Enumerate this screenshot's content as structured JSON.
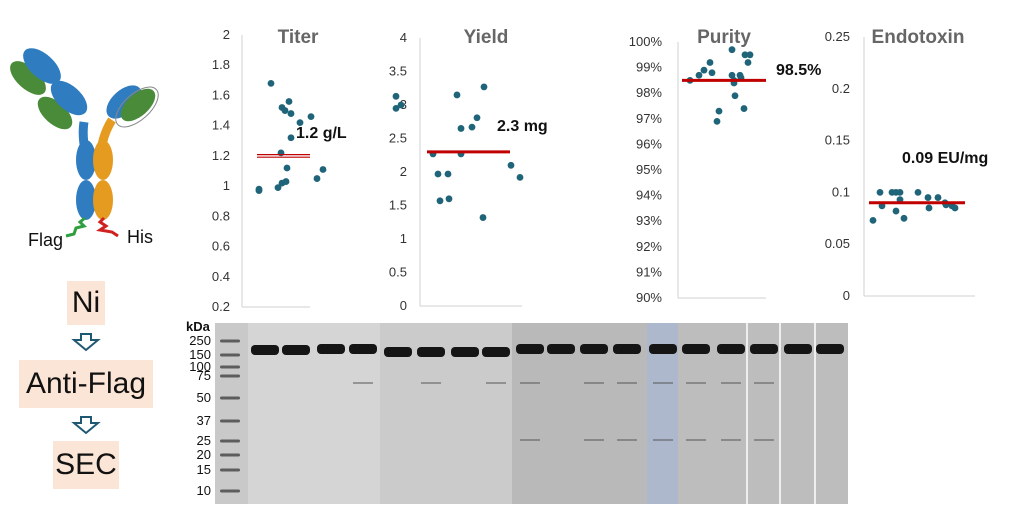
{
  "antibody": {
    "tag_left": "Flag",
    "tag_right": "His"
  },
  "workflow": {
    "steps": [
      "Ni",
      "Anti-Flag",
      "SEC"
    ]
  },
  "colors": {
    "point": "#1f6479",
    "mean_line": "#c00000",
    "heavy_chain": "#e59a20",
    "light_chain": "#4a8b3a",
    "fab": "#2f7dc0",
    "workflow_box": "#fbe5d6"
  },
  "chart_data": [
    {
      "type": "scatter",
      "title": "Titer",
      "ylim": [
        0.2,
        2
      ],
      "yticks": [
        "0.2",
        "0.4",
        "0.6",
        "0.8",
        "1",
        "1.2",
        "1.4",
        "1.6",
        "1.8",
        "2"
      ],
      "points": [
        1.68,
        1.52,
        1.5,
        1.56,
        1.48,
        1.42,
        1.46,
        1.32,
        1.22,
        1.12,
        1.02,
        0.98,
        0.99,
        0.97,
        1.03,
        1.05,
        1.11
      ],
      "mean": 1.2,
      "annotation": "1.2 g/L"
    },
    {
      "type": "scatter",
      "title": "Yield",
      "ylim": [
        0,
        4
      ],
      "yticks": [
        "0",
        "0.5",
        "1",
        "1.5",
        "2",
        "2.5",
        "3",
        "3.5",
        "4"
      ],
      "points": [
        3.13,
        2.95,
        3.0,
        2.27,
        1.97,
        1.57,
        1.97,
        1.6,
        2.27,
        3.15,
        2.65,
        2.67,
        2.81,
        3.27,
        1.32,
        2.1,
        1.92
      ],
      "mean": 2.3,
      "annotation": "2.3 mg"
    },
    {
      "type": "scatter",
      "title": "Purity",
      "ylim": [
        90,
        100
      ],
      "yticks": [
        "90%",
        "91%",
        "92%",
        "93%",
        "94%",
        "95%",
        "96%",
        "97%",
        "98%",
        "99%",
        "100%"
      ],
      "points": [
        98.5,
        98.7,
        98.9,
        99.2,
        98.8,
        96.9,
        97.3,
        99.7,
        98.7,
        98.5,
        98.4,
        97.9,
        98.7,
        98.6,
        97.4,
        99.5,
        99.2,
        99.5
      ],
      "mean": 98.5,
      "annotation": "98.5%"
    },
    {
      "type": "scatter",
      "title": "Endotoxin",
      "ylim": [
        0,
        0.25
      ],
      "yticks": [
        "0",
        "0.05",
        "0.1",
        "0.15",
        "0.2",
        "0.25"
      ],
      "points": [
        0.073,
        0.1,
        0.087,
        0.1,
        0.1,
        0.082,
        0.093,
        0.1,
        0.075,
        0.1,
        0.095,
        0.085,
        0.095,
        0.09,
        0.088,
        0.087,
        0.085
      ],
      "mean": 0.09,
      "annotation": "0.09 EU/mg"
    }
  ],
  "gel": {
    "unit_label": "kDa",
    "ladder": [
      "250",
      "150",
      "100",
      "75",
      "50",
      "37",
      "25",
      "20",
      "15",
      "10"
    ]
  }
}
